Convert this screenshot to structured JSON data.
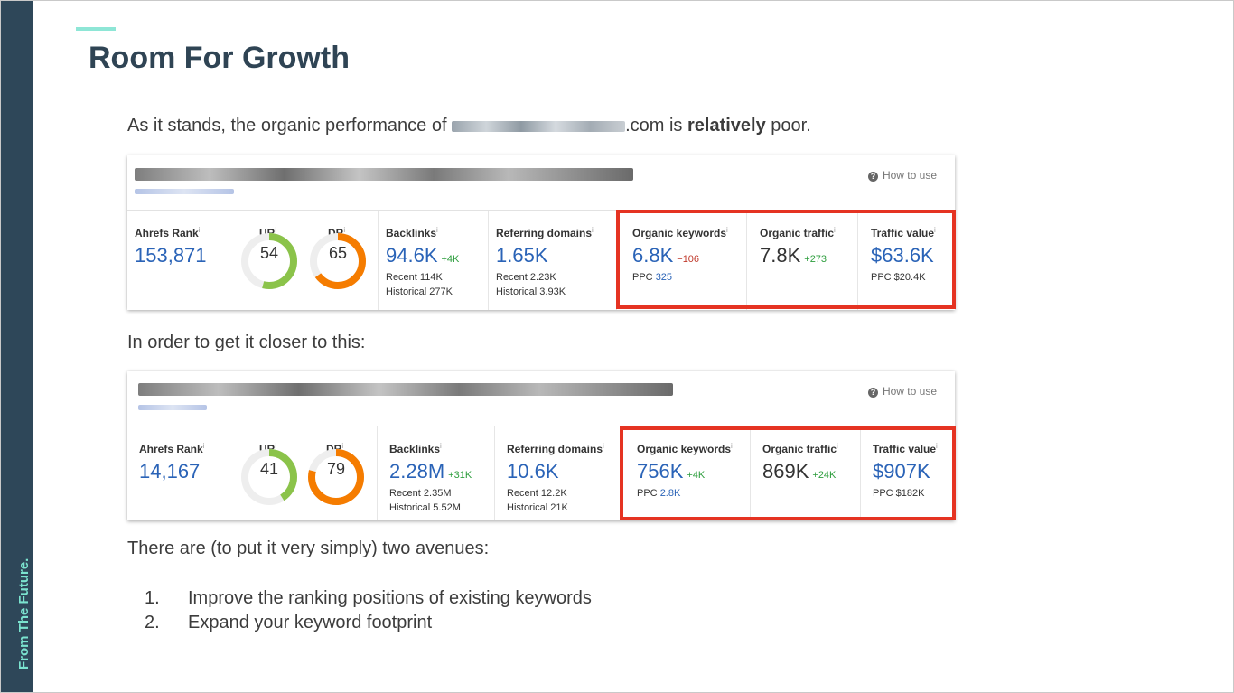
{
  "sidebar": {
    "brand_text": "From The Future."
  },
  "colors": {
    "sidebar": "#2e4759",
    "accent": "#8ee6d6",
    "title": "#2f4454",
    "highlight_box": "#e53322",
    "metric_blue": "#2a63b7",
    "gauge_green": "#8bc34a",
    "gauge_orange": "#f57c00"
  },
  "slide": {
    "title": "Room For Growth",
    "intro_before": "As it stands, the organic performance of ",
    "intro_domain": ".com is ",
    "intro_bold": "relatively",
    "intro_after": " poor.",
    "closer_text": "In order to get it closer to this:",
    "avenues_text": "There are (to put it very simply) two avenues:",
    "list": [
      {
        "num": "1.",
        "text": "Improve the ranking positions of existing keywords"
      },
      {
        "num": "2.",
        "text": "Expand your keyword footprint"
      }
    ]
  },
  "cards": [
    {
      "how_to_use": "How to use",
      "ahrefs_rank_label": "Ahrefs Rank",
      "ahrefs_rank": "153,871",
      "ur_label": "UR",
      "ur": "54",
      "ur_fraction": 0.54,
      "dr_label": "DR",
      "dr": "65",
      "dr_fraction": 0.65,
      "backlinks_label": "Backlinks",
      "backlinks": "94.6K",
      "backlinks_change": "+4K",
      "backlinks_recent": "Recent 114K",
      "backlinks_historical": "Historical 277K",
      "ref_domains_label": "Referring domains",
      "ref_domains": "1.65K",
      "ref_recent": "Recent 2.23K",
      "ref_historical": "Historical 3.93K",
      "organic_kw_label": "Organic keywords",
      "organic_kw": "6.8K",
      "organic_kw_change": "−106",
      "ppc_label": "PPC",
      "ppc_kw": "325",
      "organic_traffic_label": "Organic traffic",
      "organic_traffic": "7.8K",
      "organic_traffic_change": "+273",
      "traffic_value_label": "Traffic value",
      "traffic_value": "$63.6K",
      "traffic_value_ppc": "PPC $20.4K"
    },
    {
      "how_to_use": "How to use",
      "ahrefs_rank_label": "Ahrefs Rank",
      "ahrefs_rank": "14,167",
      "ur_label": "UR",
      "ur": "41",
      "ur_fraction": 0.41,
      "dr_label": "DR",
      "dr": "79",
      "dr_fraction": 0.79,
      "backlinks_label": "Backlinks",
      "backlinks": "2.28M",
      "backlinks_change": "+31K",
      "backlinks_recent": "Recent 2.35M",
      "backlinks_historical": "Historical 5.52M",
      "ref_domains_label": "Referring domains",
      "ref_domains": "10.6K",
      "ref_recent": "Recent 12.2K",
      "ref_historical": "Historical 21K",
      "organic_kw_label": "Organic keywords",
      "organic_kw": "756K",
      "organic_kw_change": "+4K",
      "ppc_label": "PPC",
      "ppc_kw": "2.8K",
      "organic_traffic_label": "Organic traffic",
      "organic_traffic": "869K",
      "organic_traffic_change": "+24K",
      "traffic_value_label": "Traffic value",
      "traffic_value": "$907K",
      "traffic_value_ppc": "PPC $182K"
    }
  ]
}
